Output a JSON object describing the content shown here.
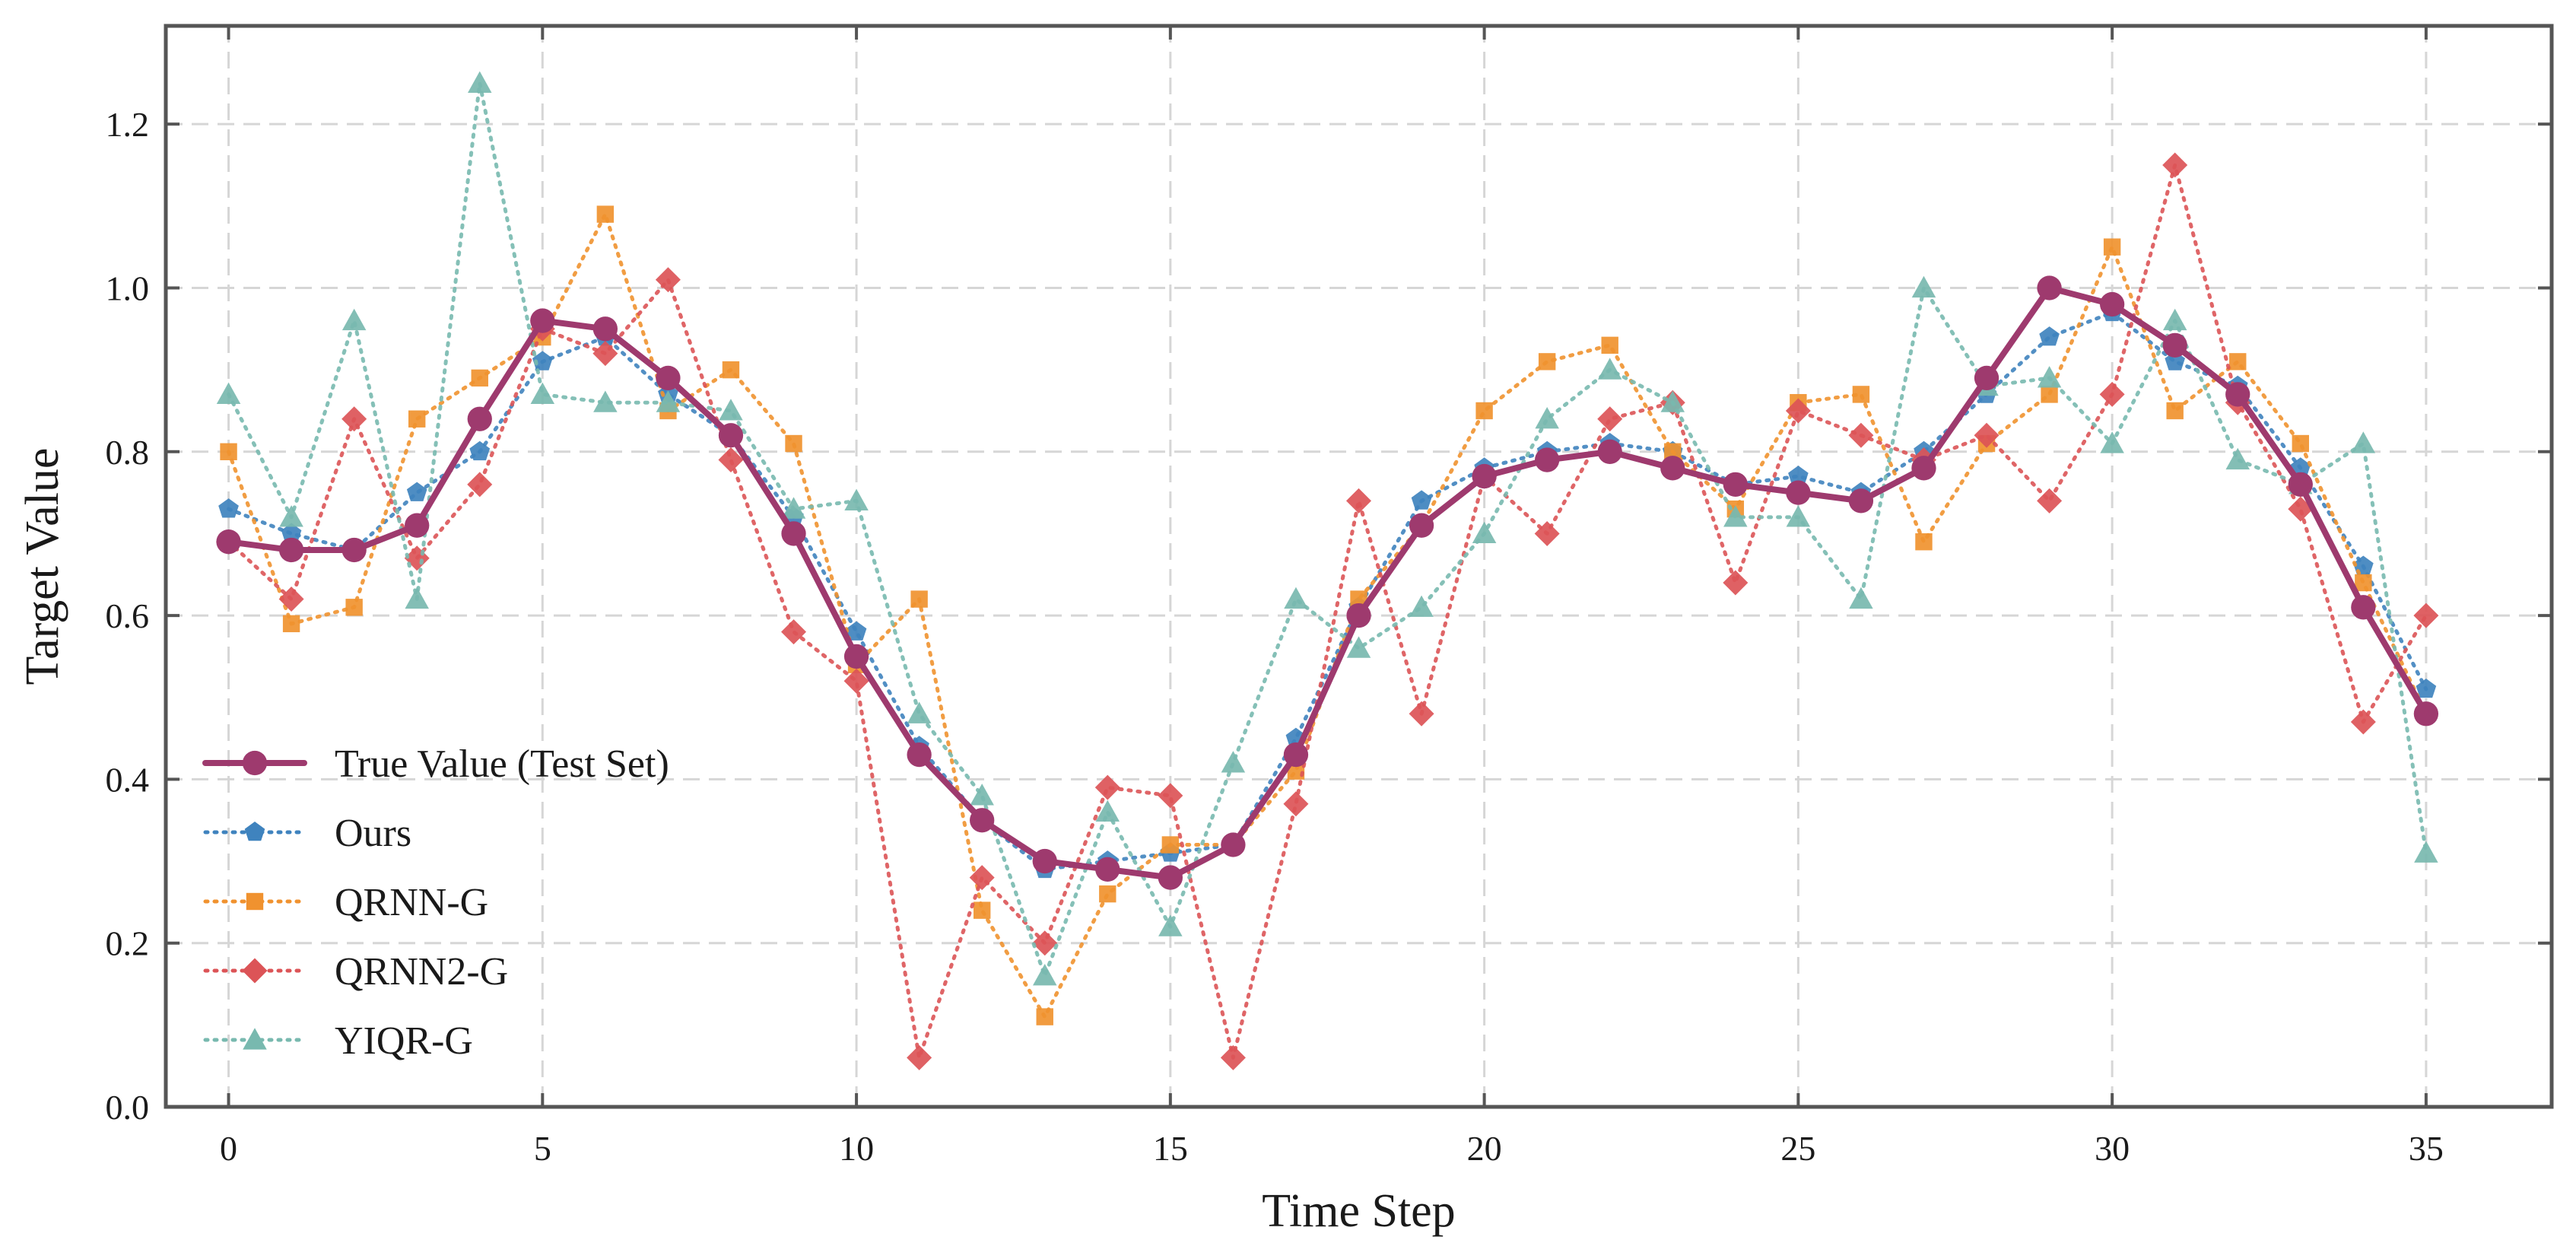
{
  "chart_data": {
    "type": "line",
    "title": "",
    "xlabel": "Time Step",
    "ylabel": "Target Value",
    "xlim": [
      -1,
      37
    ],
    "ylim": [
      0.0,
      1.32
    ],
    "xticks": [
      0,
      5,
      10,
      15,
      20,
      25,
      30,
      35
    ],
    "xtick_labels": [
      "0",
      "5",
      "10",
      "15",
      "20",
      "25",
      "30",
      "35"
    ],
    "yticks": [
      0.0,
      0.2,
      0.4,
      0.6,
      0.8,
      1.0,
      1.2
    ],
    "ytick_labels": [
      "0.0",
      "0.2",
      "0.4",
      "0.6",
      "0.8",
      "1.0",
      "1.2"
    ],
    "grid": true,
    "legend_position": "lower-left",
    "x": [
      0,
      1,
      2,
      3,
      4,
      5,
      6,
      7,
      8,
      9,
      10,
      11,
      12,
      13,
      14,
      15,
      16,
      17,
      18,
      19,
      20,
      21,
      22,
      23,
      24,
      25,
      26,
      27,
      28,
      29,
      30,
      31,
      32,
      33,
      34,
      35
    ],
    "series": [
      {
        "name": "True Value (Test Set)",
        "color": "#9e3a6e",
        "marker": "circle",
        "line_style": "solid",
        "values": [
          0.69,
          0.68,
          0.68,
          0.71,
          0.84,
          0.96,
          0.95,
          0.89,
          0.82,
          0.7,
          0.55,
          0.43,
          0.35,
          0.3,
          0.29,
          0.28,
          0.32,
          0.43,
          0.6,
          0.71,
          0.77,
          0.79,
          0.8,
          0.78,
          0.76,
          0.75,
          0.74,
          0.78,
          0.89,
          1.0,
          0.98,
          0.93,
          0.87,
          0.76,
          0.61,
          0.48
        ]
      },
      {
        "name": "Ours",
        "color": "#3f83be",
        "marker": "pentagon",
        "line_style": "dotted",
        "values": [
          0.73,
          0.7,
          0.68,
          0.75,
          0.8,
          0.91,
          0.94,
          0.87,
          0.82,
          0.72,
          0.58,
          0.44,
          0.35,
          0.29,
          0.3,
          0.31,
          0.32,
          0.45,
          0.61,
          0.74,
          0.78,
          0.8,
          0.81,
          0.8,
          0.76,
          0.77,
          0.75,
          0.8,
          0.87,
          0.94,
          0.97,
          0.91,
          0.88,
          0.78,
          0.66,
          0.51
        ]
      },
      {
        "name": "QRNN-G",
        "color": "#f0922f",
        "marker": "square",
        "line_style": "dotted",
        "values": [
          0.8,
          0.59,
          0.61,
          0.84,
          0.89,
          0.94,
          1.09,
          0.85,
          0.9,
          0.81,
          0.54,
          0.62,
          0.24,
          0.11,
          0.26,
          0.32,
          0.32,
          0.41,
          0.62,
          0.71,
          0.85,
          0.91,
          0.93,
          0.8,
          0.73,
          0.86,
          0.87,
          0.69,
          0.81,
          0.87,
          1.05,
          0.85,
          0.91,
          0.81,
          0.64,
          0.48
        ]
      },
      {
        "name": "QRNN2-G",
        "color": "#dc5457",
        "marker": "diamond",
        "line_style": "dotted",
        "values": [
          0.69,
          0.62,
          0.84,
          0.67,
          0.76,
          0.95,
          0.92,
          1.01,
          0.79,
          0.58,
          0.52,
          0.06,
          0.28,
          0.2,
          0.39,
          0.38,
          0.06,
          0.37,
          0.74,
          0.48,
          0.77,
          0.7,
          0.84,
          0.86,
          0.64,
          0.85,
          0.82,
          0.79,
          0.82,
          0.74,
          0.87,
          1.15,
          0.86,
          0.73,
          0.47,
          0.6
        ]
      },
      {
        "name": "YIQR-G",
        "color": "#78b9af",
        "marker": "triangle",
        "line_style": "dotted",
        "values": [
          0.87,
          0.72,
          0.96,
          0.62,
          1.25,
          0.87,
          0.86,
          0.86,
          0.85,
          0.73,
          0.74,
          0.48,
          0.38,
          0.16,
          0.36,
          0.22,
          0.42,
          0.62,
          0.56,
          0.61,
          0.7,
          0.84,
          0.9,
          0.86,
          0.72,
          0.72,
          0.62,
          1.0,
          0.88,
          0.89,
          0.81,
          0.96,
          0.79,
          0.76,
          0.81,
          0.31
        ]
      }
    ]
  }
}
